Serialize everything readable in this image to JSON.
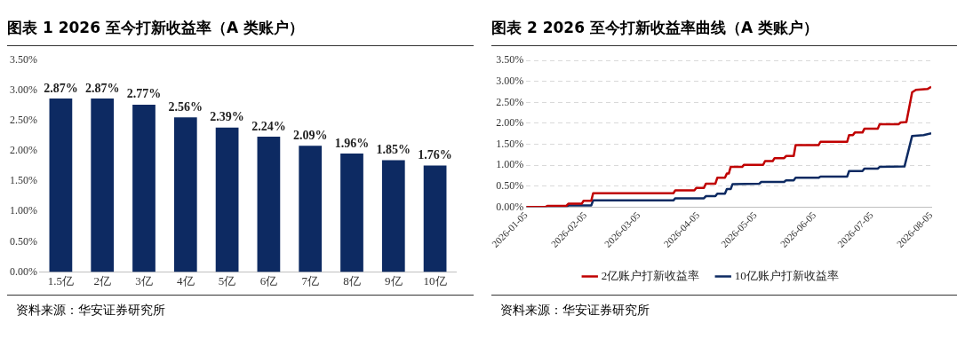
{
  "chart_data": [
    {
      "type": "bar",
      "title": "图表 1 2026 至今打新收益率（A 类账户）",
      "categories": [
        "1.5亿",
        "2亿",
        "3亿",
        "4亿",
        "5亿",
        "6亿",
        "7亿",
        "8亿",
        "9亿",
        "10亿"
      ],
      "values": [
        2.87,
        2.87,
        2.77,
        2.56,
        2.39,
        2.24,
        2.09,
        1.96,
        1.85,
        1.76
      ],
      "value_labels": [
        "2.87%",
        "2.87%",
        "2.77%",
        "2.56%",
        "2.39%",
        "2.24%",
        "2.09%",
        "1.96%",
        "1.85%",
        "1.76%"
      ],
      "color": "#0d2a62",
      "ylim": [
        0,
        3.5
      ],
      "yticks": [
        {
          "value": 0,
          "label": "0.00%"
        },
        {
          "value": 0.5,
          "label": "0.50%"
        },
        {
          "value": 1,
          "label": "1.00%"
        },
        {
          "value": 1.5,
          "label": "1.50%"
        },
        {
          "value": 2,
          "label": "2.00%"
        },
        {
          "value": 2.5,
          "label": "2.50%"
        },
        {
          "value": 3,
          "label": "3.00%"
        },
        {
          "value": 3.5,
          "label": "3.50%"
        }
      ],
      "grid": false,
      "legend": false,
      "annotations": [
        "资料来源：华安证券研究所"
      ]
    },
    {
      "type": "line",
      "title": "图表 2 2026 至今打新收益率曲线（A 类账户）",
      "marker": "none",
      "line_style": "solid",
      "grid": "y",
      "legend": "bottom",
      "xlim": [
        "2026-01-05",
        "2026-08-05"
      ],
      "xticks": [
        "2026-01-05",
        "2026-02-05",
        "2026-03-05",
        "2026-04-05",
        "2026-05-05",
        "2026-06-05",
        "2026-07-05",
        "2026-08-05"
      ],
      "ylim": [
        0,
        3.5
      ],
      "yticks": [
        {
          "value": 0,
          "label": "0.00%"
        },
        {
          "value": 0.5,
          "label": "0.50%"
        },
        {
          "value": 1,
          "label": "1.00%"
        },
        {
          "value": 1.5,
          "label": "1.50%"
        },
        {
          "value": 2,
          "label": "2.00%"
        },
        {
          "value": 2.5,
          "label": "2.50%"
        },
        {
          "value": 3,
          "label": "3.00%"
        },
        {
          "value": 3.5,
          "label": "3.50%"
        }
      ],
      "series": [
        {
          "name": "2亿账户打新收益率",
          "color": "#c00000",
          "x": [
            "2026-01-05",
            "2026-01-15",
            "2026-01-16",
            "2026-01-26",
            "2026-01-27",
            "2026-02-03",
            "2026-02-04",
            "2026-02-08",
            "2026-02-09",
            "2026-03-23",
            "2026-03-24",
            "2026-04-03",
            "2026-04-04",
            "2026-04-08",
            "2026-04-09",
            "2026-04-14",
            "2026-04-15",
            "2026-04-19",
            "2026-04-20",
            "2026-04-21",
            "2026-04-22",
            "2026-04-28",
            "2026-04-29",
            "2026-05-09",
            "2026-05-10",
            "2026-05-14",
            "2026-05-15",
            "2026-05-20",
            "2026-05-21",
            "2026-05-25",
            "2026-05-26",
            "2026-06-07",
            "2026-06-08",
            "2026-06-22",
            "2026-06-23",
            "2026-06-25",
            "2026-06-26",
            "2026-06-30",
            "2026-07-01",
            "2026-07-08",
            "2026-07-09",
            "2026-07-19",
            "2026-07-20",
            "2026-07-23",
            "2026-07-26",
            "2026-07-28",
            "2026-08-03",
            "2026-08-05"
          ],
          "values": [
            0,
            0,
            0.03,
            0.03,
            0.08,
            0.08,
            0.15,
            0.15,
            0.33,
            0.33,
            0.4,
            0.4,
            0.46,
            0.46,
            0.56,
            0.56,
            0.7,
            0.7,
            0.8,
            0.8,
            0.96,
            0.96,
            1.01,
            1.01,
            1.1,
            1.1,
            1.17,
            1.17,
            1.22,
            1.22,
            1.48,
            1.48,
            1.56,
            1.56,
            1.72,
            1.72,
            1.78,
            1.78,
            1.87,
            1.87,
            1.98,
            1.98,
            2.02,
            2.03,
            2.74,
            2.8,
            2.82,
            2.87
          ]
        },
        {
          "name": "10亿账户打新收益率",
          "color": "#0d2a62",
          "x": [
            "2026-01-05",
            "2026-01-26",
            "2026-01-27",
            "2026-02-08",
            "2026-02-09",
            "2026-03-23",
            "2026-03-24",
            "2026-04-08",
            "2026-04-09",
            "2026-04-14",
            "2026-04-15",
            "2026-04-19",
            "2026-04-20",
            "2026-04-22",
            "2026-04-23",
            "2026-05-07",
            "2026-05-08",
            "2026-05-20",
            "2026-05-21",
            "2026-05-25",
            "2026-05-26",
            "2026-06-07",
            "2026-06-08",
            "2026-06-22",
            "2026-06-23",
            "2026-06-30",
            "2026-07-01",
            "2026-07-08",
            "2026-07-09",
            "2026-07-22",
            "2026-07-26",
            "2026-08-01",
            "2026-08-05"
          ],
          "values": [
            0,
            0,
            0.04,
            0.04,
            0.16,
            0.16,
            0.21,
            0.21,
            0.26,
            0.26,
            0.32,
            0.32,
            0.43,
            0.43,
            0.55,
            0.56,
            0.6,
            0.6,
            0.64,
            0.64,
            0.7,
            0.7,
            0.73,
            0.73,
            0.86,
            0.86,
            0.92,
            0.92,
            0.96,
            0.97,
            1.7,
            1.72,
            1.76
          ]
        }
      ],
      "annotations": [
        "资料来源：华安证券研究所"
      ]
    }
  ]
}
